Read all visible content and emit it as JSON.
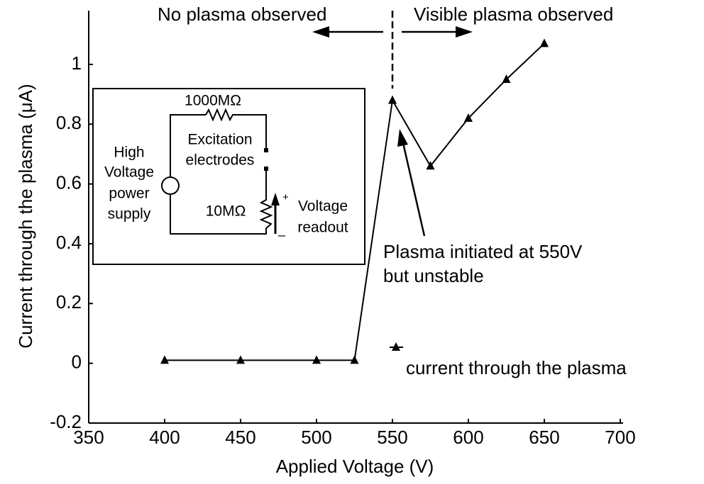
{
  "chart_data": {
    "type": "line",
    "xlabel": "Applied Voltage (V)",
    "ylabel": "Current through the plasma (μA)",
    "x": [
      400,
      450,
      500,
      525,
      550,
      575,
      600,
      625,
      650
    ],
    "series": [
      {
        "name": "current through the plasma",
        "color": "#000000",
        "values": [
          0.01,
          0.01,
          0.01,
          0.01,
          0.88,
          0.66,
          0.82,
          0.95,
          1.07
        ]
      }
    ],
    "xlim": [
      350,
      700
    ],
    "xticks": [
      350,
      400,
      450,
      500,
      550,
      600,
      650,
      700
    ],
    "ylim": [
      -0.2,
      1.18
    ],
    "yticks": [
      -0.2,
      0,
      0.2,
      0.4,
      0.6,
      0.8,
      1
    ],
    "legend": "lower right",
    "grid": false,
    "annotations": [
      "No plasma observed",
      "Visible plasma observed",
      "Plasma initiated at 550V",
      "but unstable"
    ],
    "inset": {
      "resistor_top": "1000MΩ",
      "electrodes": [
        "Excitation",
        "electrodes"
      ],
      "source": [
        "High",
        "Voltage",
        "power",
        "supply"
      ],
      "resistor_bottom": "10MΩ",
      "readout": [
        "Voltage",
        "readout"
      ],
      "plus": "+",
      "minus": "_"
    }
  }
}
